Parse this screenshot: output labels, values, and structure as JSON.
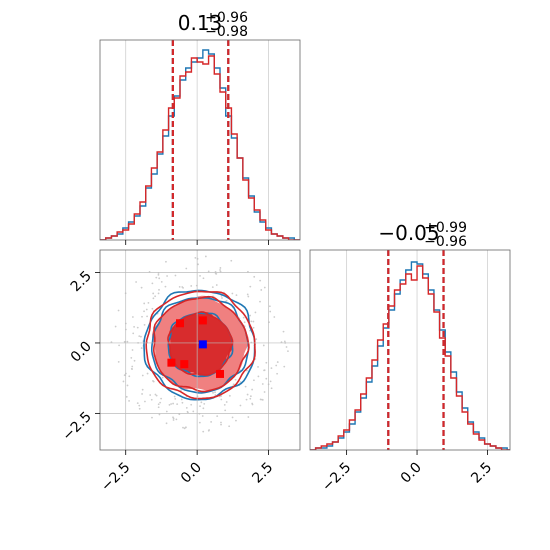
{
  "chart_data": {
    "type": "corner",
    "grid": true,
    "colors": {
      "blue": "#1f77b4",
      "red": "#d62728",
      "red_fill": "#f08080",
      "red_fill_inner": "#d62728",
      "truth_blue": "#0000ff",
      "scatter": "#cccccc"
    },
    "panels": {
      "hist_x": {
        "type": "step-histogram",
        "title": {
          "median": "0.13",
          "plus": "+0.96",
          "minus": "−0.98"
        },
        "quantiles": [
          -0.85,
          1.09
        ],
        "xlim": [
          -3.4,
          3.6
        ],
        "ylim": [
          0,
          1.0
        ],
        "bins_x": [
          -3.4,
          -3.2,
          -3.0,
          -2.8,
          -2.6,
          -2.4,
          -2.2,
          -2.0,
          -1.8,
          -1.6,
          -1.4,
          -1.2,
          -1.0,
          -0.8,
          -0.6,
          -0.4,
          -0.2,
          0.0,
          0.2,
          0.4,
          0.6,
          0.8,
          1.0,
          1.2,
          1.4,
          1.6,
          1.8,
          2.0,
          2.2,
          2.4,
          2.6,
          2.8,
          3.0,
          3.2,
          3.4,
          3.6
        ],
        "series": [
          {
            "name": "blue",
            "values": [
              0.0,
              0.01,
              0.02,
              0.03,
              0.06,
              0.09,
              0.12,
              0.17,
              0.26,
              0.33,
              0.43,
              0.52,
              0.62,
              0.72,
              0.8,
              0.86,
              0.89,
              0.91,
              0.95,
              0.93,
              0.86,
              0.76,
              0.62,
              0.51,
              0.41,
              0.31,
              0.22,
              0.14,
              0.09,
              0.06,
              0.03,
              0.02,
              0.01,
              0.01,
              0.0
            ]
          },
          {
            "name": "red",
            "values": [
              0.0,
              0.01,
              0.02,
              0.04,
              0.05,
              0.08,
              0.13,
              0.19,
              0.27,
              0.36,
              0.44,
              0.55,
              0.66,
              0.71,
              0.82,
              0.84,
              0.91,
              0.89,
              0.88,
              0.92,
              0.83,
              0.74,
              0.66,
              0.53,
              0.41,
              0.3,
              0.21,
              0.15,
              0.1,
              0.05,
              0.03,
              0.02,
              0.01,
              0.0,
              0.0
            ]
          }
        ]
      },
      "hist_y": {
        "type": "step-histogram",
        "title": {
          "median": "−0.05",
          "plus": "+0.99",
          "minus": "−0.96"
        },
        "quantiles": [
          -1.02,
          0.94
        ],
        "xlim": [
          -3.8,
          3.3
        ],
        "ylim": [
          0,
          1.0
        ],
        "xticks": [
          "−2.5",
          "0.0",
          "2.5"
        ],
        "xtick_values": [
          -2.5,
          0.0,
          2.5
        ],
        "bins_x": [
          -3.8,
          -3.6,
          -3.4,
          -3.2,
          -3.0,
          -2.8,
          -2.6,
          -2.4,
          -2.2,
          -2.0,
          -1.8,
          -1.6,
          -1.4,
          -1.2,
          -1.0,
          -0.8,
          -0.6,
          -0.4,
          -0.2,
          0.0,
          0.2,
          0.4,
          0.6,
          0.8,
          1.0,
          1.2,
          1.4,
          1.6,
          1.8,
          2.0,
          2.2,
          2.4,
          2.6,
          2.8,
          3.0,
          3.2,
          3.3
        ],
        "series": [
          {
            "name": "blue",
            "values": [
              0.0,
              0.01,
              0.01,
              0.02,
              0.04,
              0.06,
              0.09,
              0.13,
              0.19,
              0.26,
              0.34,
              0.42,
              0.52,
              0.61,
              0.7,
              0.78,
              0.85,
              0.9,
              0.94,
              0.93,
              0.88,
              0.8,
              0.7,
              0.6,
              0.49,
              0.39,
              0.29,
              0.21,
              0.14,
              0.09,
              0.06,
              0.03,
              0.02,
              0.01,
              0.01,
              0.0
            ]
          },
          {
            "name": "red",
            "values": [
              0.0,
              0.01,
              0.02,
              0.03,
              0.04,
              0.07,
              0.1,
              0.15,
              0.2,
              0.28,
              0.36,
              0.45,
              0.55,
              0.63,
              0.72,
              0.8,
              0.83,
              0.88,
              0.85,
              0.92,
              0.86,
              0.78,
              0.69,
              0.56,
              0.47,
              0.36,
              0.27,
              0.19,
              0.13,
              0.08,
              0.05,
              0.03,
              0.02,
              0.01,
              0.0,
              0.0
            ]
          }
        ]
      },
      "joint": {
        "type": "2d-contour",
        "xlim": [
          -3.4,
          3.6
        ],
        "ylim": [
          -3.8,
          3.3
        ],
        "xticks": [
          "−2.5",
          "0.0",
          "2.5"
        ],
        "xtick_values": [
          -2.5,
          0.0,
          2.5
        ],
        "yticks": [
          "−2.5",
          "0.0",
          "2.5"
        ],
        "ytick_values": [
          -2.5,
          0.0,
          2.5
        ],
        "contour_levels_sigma": [
          1.1,
          1.65,
          1.9
        ],
        "truth_point": [
          0.2,
          -0.05
        ],
        "red_points": [
          [
            -0.6,
            0.7
          ],
          [
            0.2,
            0.8
          ],
          [
            -0.9,
            -0.7
          ],
          [
            -0.45,
            -0.75
          ],
          [
            0.8,
            -1.1
          ]
        ]
      }
    }
  }
}
